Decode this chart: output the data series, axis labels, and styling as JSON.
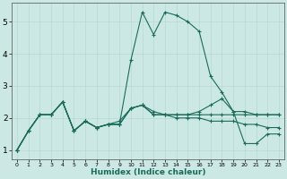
{
  "xlabel": "Humidex (Indice chaleur)",
  "ylabel": "",
  "background_color": "#cce8e4",
  "grid_color": "#b8d8d4",
  "line_color": "#1a6b5a",
  "xlim": [
    -0.5,
    23.5
  ],
  "ylim": [
    0.7,
    5.6
  ],
  "xticks": [
    0,
    1,
    2,
    3,
    4,
    5,
    6,
    7,
    8,
    9,
    10,
    11,
    12,
    13,
    14,
    15,
    16,
    17,
    18,
    19,
    20,
    21,
    22,
    23
  ],
  "yticks": [
    1,
    2,
    3,
    4,
    5
  ],
  "curves": [
    [
      1.0,
      1.6,
      2.1,
      2.1,
      2.5,
      1.6,
      1.9,
      1.7,
      1.8,
      1.8,
      3.8,
      5.3,
      4.6,
      5.3,
      5.2,
      5.0,
      4.7,
      3.3,
      2.8,
      2.2,
      1.2,
      1.2,
      1.5,
      1.5
    ],
    [
      1.0,
      1.6,
      2.1,
      2.1,
      2.5,
      1.6,
      1.9,
      1.7,
      1.8,
      1.8,
      2.3,
      2.4,
      2.1,
      2.1,
      2.1,
      2.1,
      2.2,
      2.4,
      2.6,
      2.2,
      2.2,
      2.1,
      2.1,
      2.1
    ],
    [
      1.0,
      1.6,
      2.1,
      2.1,
      2.5,
      1.6,
      1.9,
      1.7,
      1.8,
      1.9,
      2.3,
      2.4,
      2.2,
      2.1,
      2.1,
      2.1,
      2.1,
      2.1,
      2.1,
      2.1,
      2.1,
      2.1,
      2.1,
      2.1
    ],
    [
      1.0,
      1.6,
      2.1,
      2.1,
      2.5,
      1.6,
      1.9,
      1.7,
      1.8,
      1.8,
      2.3,
      2.4,
      2.1,
      2.1,
      2.0,
      2.0,
      2.0,
      1.9,
      1.9,
      1.9,
      1.8,
      1.8,
      1.7,
      1.7
    ]
  ],
  "marker": "+",
  "markersize": 3.5,
  "linewidth": 0.8,
  "xlabel_fontsize": 6.5,
  "xlabel_fontweight": "bold",
  "xlabel_color": "#1a6b5a",
  "xtick_fontsize": 4.5,
  "ytick_fontsize": 6.5
}
